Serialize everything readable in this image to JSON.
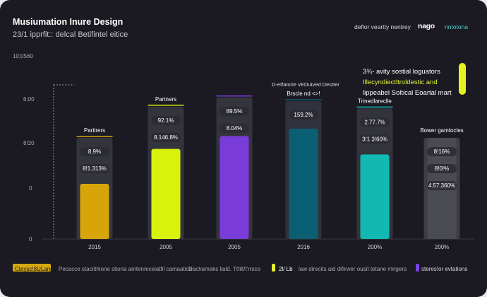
{
  "chart_data": {
    "type": "bar",
    "title": "Musiumation Inure Design",
    "subtitle": "23/1 ipprfit:: delcal Betifintel eitice",
    "header_right": "deflor veartty nentrey",
    "logo": "nago",
    "logo_tag": "nntotona",
    "y_labels": [
      "10;0560",
      "6;00",
      "8!20",
      "0",
      "0"
    ],
    "annotation": "D-etfatorie vEDutved Destter",
    "callouts": [
      {
        "text": "3¾- avity sostial loguators",
        "color": "#ffffff"
      },
      {
        "text": "Illecyndiectltroldestic and",
        "color": "#dff236"
      },
      {
        "text": "lippeabel Soltical Eoartal mart",
        "color": "#ffffff"
      }
    ],
    "categories": [
      "2015",
      "2005",
      "2005",
      "2016",
      "200%",
      "200%"
    ],
    "bars": [
      {
        "x_label": "2015",
        "label": "Partirers",
        "primary_value": 0.3,
        "back_value": 0.55,
        "labels": [
          "8.9%",
          "8!1.313%"
        ],
        "color": "#d7a50a",
        "back": "#3e3d45"
      },
      {
        "x_label": "2005",
        "label": "Partners",
        "primary_value": 0.49,
        "back_value": 0.72,
        "labels": [
          "92.1%",
          "8.146.8%"
        ],
        "color": "#d8f20c",
        "back": "#3e3d45"
      },
      {
        "x_label": "2005",
        "label": "",
        "primary_value": 0.56,
        "back_value": 0.77,
        "labels": [
          "89.5%",
          "8.04%"
        ],
        "color": "#7a3cd9",
        "back": "#3e3d45"
      },
      {
        "x_label": "2016",
        "label": "Brscle nd <>!",
        "primary_value": 0.6,
        "back_value": 0.75,
        "labels": [
          "159.2%"
        ],
        "color": "#0b5f73",
        "back": "#3a3b44"
      },
      {
        "x_label": "200%",
        "label": "Trinedlareclle",
        "primary_value": 0.46,
        "back_value": 0.71,
        "labels": [
          "2.77.7%",
          "3!1 3!60%"
        ],
        "color": "#12b8b2",
        "back": "#3b3c44"
      },
      {
        "x_label": "200%",
        "label": "Bower gamtocles",
        "primary_value": 0.55,
        "back_value": 0.55,
        "labels": [
          "8!16%",
          "8!0!%",
          "4.57.360%"
        ],
        "color": "#4a4a52",
        "back": "#4a4a52"
      }
    ],
    "legend": [
      {
        "label": "Cteysc!8ULand",
        "color": "#d6a80f"
      },
      {
        "label": "Pecacce staciithione stiona amtenmceiatfil camaatica",
        "color": ""
      },
      {
        "label": "Dachamaks liald. Ttfilt/t'rrsco",
        "color": ""
      },
      {
        "label": "2l/ Lb",
        "color": "#e5ef2a"
      },
      {
        "label": "law direcits aid difirwer ousit tetane mrigers",
        "color": ""
      },
      {
        "label": "steres!or evtations",
        "color": "#7c44e8"
      }
    ]
  }
}
